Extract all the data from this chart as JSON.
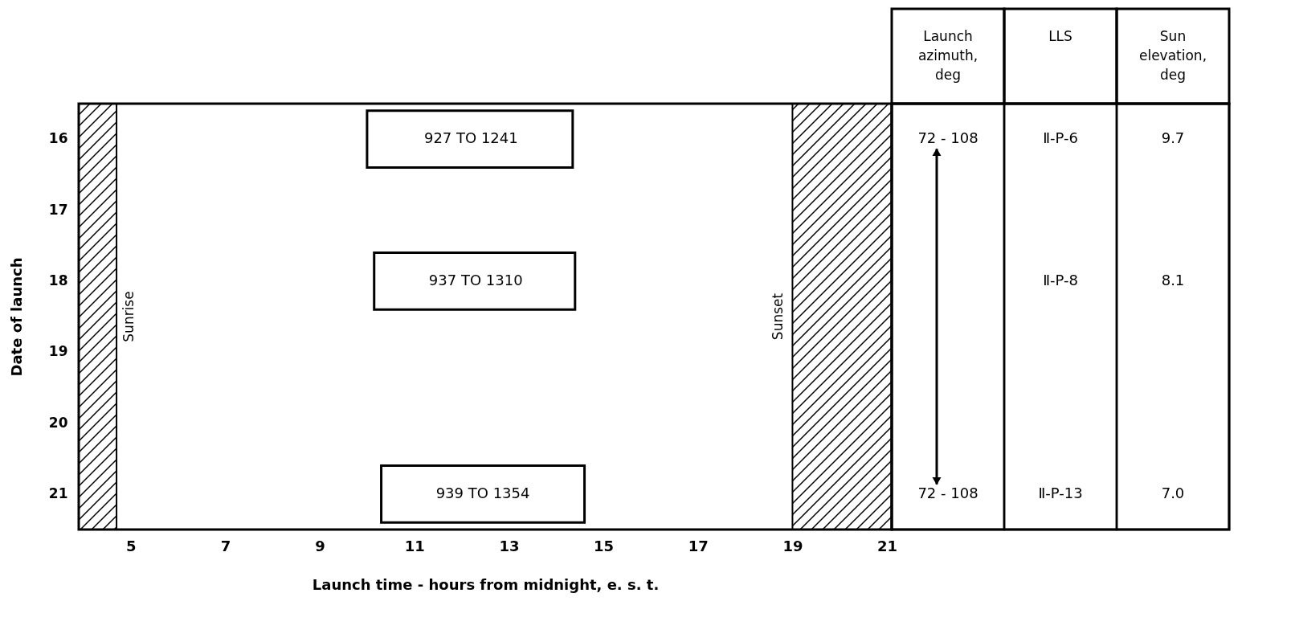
{
  "chart_data": [
    {
      "type": "bar",
      "orientation": "horizontal",
      "xlabel": "Launch time - hours from midnight, e. s. t.",
      "ylabel": "Date of launch",
      "categories": [
        "16",
        "17",
        "18",
        "19",
        "20",
        "21"
      ],
      "values": [
        4.35,
        null,
        4.25,
        null,
        null,
        4.3
      ],
      "base": [
        10.0,
        null,
        10.15,
        null,
        null,
        10.3
      ],
      "color": "#ffffff",
      "xlim": [
        3.9,
        21.1
      ],
      "xticks": [
        5,
        7,
        9,
        11,
        13,
        15,
        17,
        19,
        21
      ],
      "annotations": [
        {
          "text": "927 TO 1241",
          "x": 12.2,
          "y": "16"
        },
        {
          "text": "937 TO 1310",
          "x": 12.3,
          "y": "18"
        },
        {
          "text": "939 TO 1354",
          "x": 12.45,
          "y": "21"
        }
      ],
      "bands": [
        {
          "axis": "x",
          "from": 3.9,
          "to": 4.7,
          "label": "Sunrise"
        },
        {
          "axis": "x",
          "from": 19,
          "to": 21.1,
          "label": "Sunset"
        }
      ]
    },
    {
      "type": "other",
      "categories": [
        "Launch\nazimuth,\ndeg",
        "LLS",
        "Sun\nelevation,\ndeg"
      ],
      "annotations": [
        {
          "text": "72 - 108",
          "x": "Launch\nazimuth,\ndeg",
          "y": "16"
        },
        {
          "text": "72 - 108",
          "x": "Launch\nazimuth,\ndeg",
          "y": "21"
        },
        {
          "text": "Ⅱ-P-6",
          "x": "LLS",
          "y": "16"
        },
        {
          "text": "Ⅱ-P-8",
          "x": "LLS",
          "y": "18"
        },
        {
          "text": "Ⅱ-P-13",
          "x": "LLS",
          "y": "21"
        },
        {
          "text": "9.7",
          "x": "Sun\nelevation,\ndeg",
          "y": "16"
        },
        {
          "text": "8.1",
          "x": "Sun\nelevation,\ndeg",
          "y": "18"
        },
        {
          "text": "7.0",
          "x": "Sun\nelevation,\ndeg",
          "y": "21"
        }
      ]
    }
  ]
}
